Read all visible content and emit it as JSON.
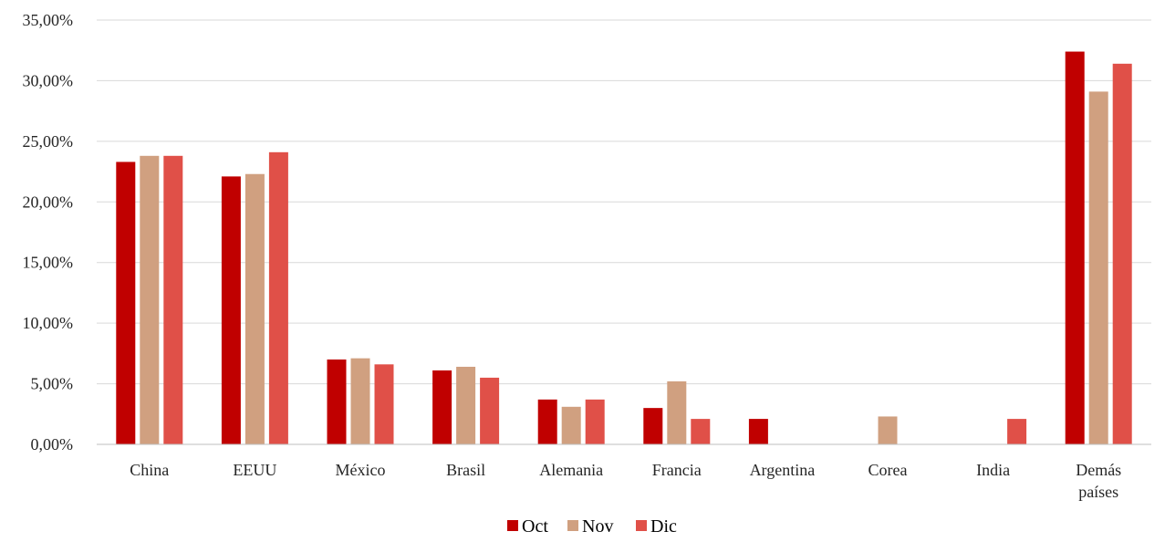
{
  "chart_data": {
    "type": "bar",
    "title": "",
    "xlabel": "",
    "ylabel": "",
    "ylim": [
      0,
      35
    ],
    "yticks": [
      "0,00%",
      "5,00%",
      "10,00%",
      "15,00%",
      "20,00%",
      "25,00%",
      "30,00%",
      "35,00%"
    ],
    "grid": true,
    "legend_position": "bottom",
    "categories": [
      [
        "China"
      ],
      [
        "EEUU"
      ],
      [
        "México"
      ],
      [
        "Brasil"
      ],
      [
        "Alemania"
      ],
      [
        "Francia"
      ],
      [
        "Argentina"
      ],
      [
        "Corea"
      ],
      [
        "India"
      ],
      [
        "Demás",
        "países"
      ]
    ],
    "series": [
      {
        "name": "Oct",
        "color": "#c00000",
        "values": [
          23.3,
          22.1,
          7.0,
          6.1,
          3.7,
          3.0,
          2.1,
          0,
          0,
          32.4
        ]
      },
      {
        "name": "Nov",
        "color": "#d0a080",
        "values": [
          23.8,
          22.3,
          7.1,
          6.4,
          3.1,
          5.2,
          0,
          2.3,
          0,
          29.1
        ]
      },
      {
        "name": "Dic",
        "color": "#e05048",
        "values": [
          23.8,
          24.1,
          6.6,
          5.5,
          3.7,
          2.1,
          0,
          0,
          2.1,
          31.4
        ]
      }
    ]
  }
}
